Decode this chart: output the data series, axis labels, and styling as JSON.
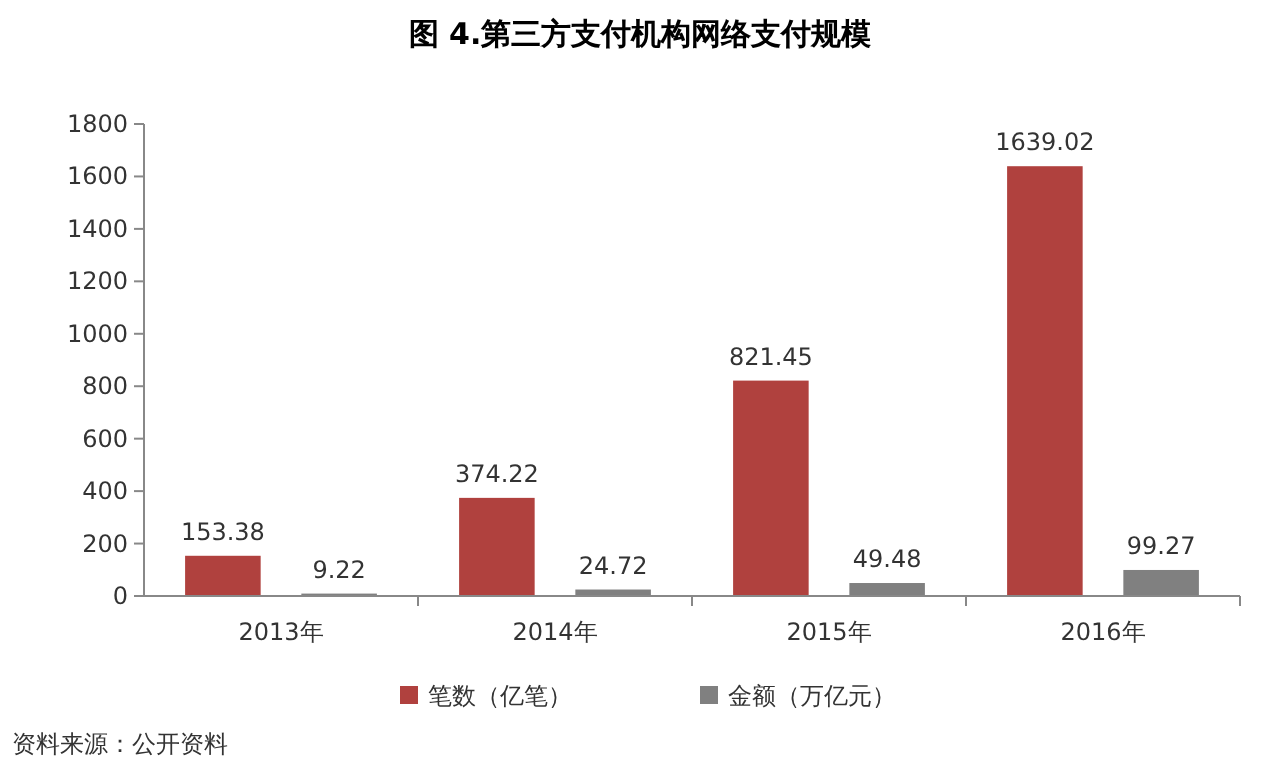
{
  "chart_data": {
    "type": "bar",
    "title": "图 4.第三方支付机构网络支付规模",
    "categories": [
      "2013年",
      "2014年",
      "2015年",
      "2016年"
    ],
    "series": [
      {
        "name": "笔数（亿笔）",
        "color": "#b0413e",
        "values": [
          153.38,
          374.22,
          821.45,
          1639.02
        ]
      },
      {
        "name": "金额（万亿元）",
        "color": "#808080",
        "values": [
          9.22,
          24.72,
          49.48,
          99.27
        ]
      }
    ],
    "ylim": [
      0,
      1800
    ],
    "yticks": [
      0,
      200,
      400,
      600,
      800,
      1000,
      1200,
      1400,
      1600,
      1800
    ],
    "data_labels": true,
    "legend": "bottom",
    "annotations": [
      "资料来源：公开资料"
    ]
  }
}
